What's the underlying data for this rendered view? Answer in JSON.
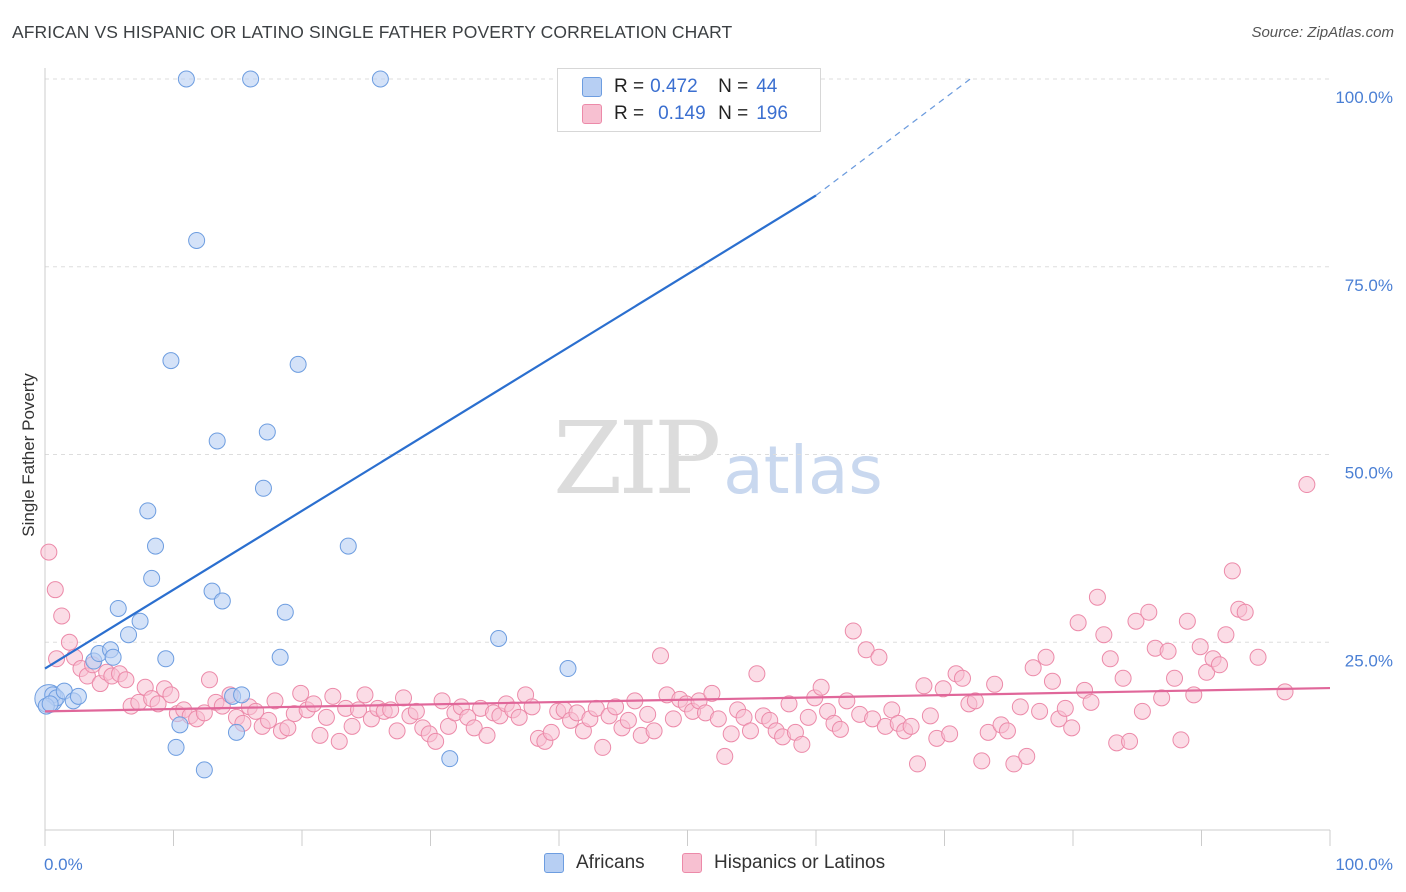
{
  "header": {
    "title": "AFRICAN VS HISPANIC OR LATINO SINGLE FATHER POVERTY CORRELATION CHART",
    "source": "Source: ZipAtlas.com"
  },
  "watermark": {
    "zip": "ZIP",
    "atlas": "atlas"
  },
  "legend": {
    "rows": [
      {
        "r_label": "R =",
        "r_value": "0.472",
        "n_label": "N =",
        "n_value": "44",
        "color": "#b7cff3"
      },
      {
        "r_label": "R =",
        "r_value": "0.149",
        "n_label": "N =",
        "n_value": "196",
        "color": "#f7c0d1"
      }
    ]
  },
  "bottom_legend": [
    {
      "label": "Africans",
      "color": "#b7cff3"
    },
    {
      "label": "Hispanics or Latinos",
      "color": "#f7c0d1"
    }
  ],
  "colors": {
    "africans_fill": "#b7cff3",
    "africans_stroke": "#6d9de0",
    "africans_line": "#2b6fcf",
    "hispanics_fill": "#f7c0d1",
    "hispanics_stroke": "#ec8aa9",
    "hispanics_line": "#e0679a",
    "grid": "#dddddd",
    "tick_text": "#4a7fd4"
  },
  "chart_data": {
    "type": "scatter",
    "title": "AFRICAN VS HISPANIC OR LATINO SINGLE FATHER POVERTY CORRELATION CHART",
    "xlabel": "",
    "ylabel": "Single Father Poverty",
    "xlim": [
      0,
      100
    ],
    "ylim": [
      0,
      100
    ],
    "x_tick_labels": [
      "0.0%",
      "100.0%"
    ],
    "y_tick_values": [
      25,
      50,
      75,
      100
    ],
    "y_tick_labels": [
      "25.0%",
      "50.0%",
      "75.0%",
      "100.0%"
    ],
    "grid": true,
    "legend_position": "top-center",
    "series": [
      {
        "name": "Africans",
        "R": 0.472,
        "N": 44,
        "trend": {
          "x0": 0,
          "y0": 21.5,
          "x1": 60,
          "y1": 84.5,
          "dash_x1": 72,
          "dash_y1": 100
        },
        "points": [
          [
            0.3,
            17.5
          ],
          [
            0.6,
            18.0
          ],
          [
            0.9,
            17.6
          ],
          [
            1.5,
            18.5
          ],
          [
            2.2,
            17.2
          ],
          [
            2.6,
            17.8
          ],
          [
            3.8,
            22.5
          ],
          [
            4.2,
            23.5
          ],
          [
            5.1,
            24.0
          ],
          [
            5.3,
            23.0
          ],
          [
            5.7,
            29.5
          ],
          [
            6.5,
            26.0
          ],
          [
            7.4,
            27.8
          ],
          [
            8.0,
            42.5
          ],
          [
            8.3,
            33.5
          ],
          [
            8.6,
            37.8
          ],
          [
            9.4,
            22.8
          ],
          [
            9.8,
            62.5
          ],
          [
            10.2,
            11.0
          ],
          [
            10.5,
            14.0
          ],
          [
            11.0,
            100.0
          ],
          [
            11.8,
            78.5
          ],
          [
            12.4,
            8.0
          ],
          [
            13.0,
            31.8
          ],
          [
            13.4,
            51.8
          ],
          [
            13.8,
            30.5
          ],
          [
            14.6,
            17.8
          ],
          [
            14.9,
            13.0
          ],
          [
            15.3,
            18.0
          ],
          [
            16.0,
            100.0
          ],
          [
            17.0,
            45.5
          ],
          [
            17.3,
            53.0
          ],
          [
            18.3,
            23.0
          ],
          [
            18.7,
            29.0
          ],
          [
            19.7,
            62.0
          ],
          [
            23.6,
            37.8
          ],
          [
            26.1,
            100.0
          ],
          [
            31.5,
            9.5
          ],
          [
            35.3,
            25.5
          ],
          [
            40.7,
            21.5
          ],
          [
            41.5,
            100.0
          ],
          [
            55.8,
            100.0
          ],
          [
            0.1,
            16.5
          ],
          [
            0.4,
            16.8
          ]
        ]
      },
      {
        "name": "Hispanics or Latinos",
        "R": 0.149,
        "N": 196,
        "trend": {
          "x0": 0,
          "y0": 15.8,
          "x1": 100,
          "y1": 18.9
        },
        "points": [
          [
            0.3,
            37.0
          ],
          [
            0.8,
            32.0
          ],
          [
            1.3,
            28.5
          ],
          [
            1.9,
            25.0
          ],
          [
            2.3,
            23.0
          ],
          [
            2.8,
            21.5
          ],
          [
            3.3,
            20.5
          ],
          [
            3.7,
            22.0
          ],
          [
            4.3,
            19.5
          ],
          [
            4.8,
            21.0
          ],
          [
            5.2,
            20.5
          ],
          [
            5.8,
            20.8
          ],
          [
            6.3,
            20.0
          ],
          [
            6.7,
            16.5
          ],
          [
            7.3,
            17.0
          ],
          [
            7.8,
            19.0
          ],
          [
            8.3,
            17.5
          ],
          [
            8.8,
            16.8
          ],
          [
            9.3,
            18.8
          ],
          [
            9.8,
            18.0
          ],
          [
            10.3,
            15.5
          ],
          [
            10.8,
            16.0
          ],
          [
            11.3,
            15.2
          ],
          [
            11.8,
            14.8
          ],
          [
            12.4,
            15.6
          ],
          [
            12.8,
            20.0
          ],
          [
            13.3,
            17.0
          ],
          [
            13.8,
            16.5
          ],
          [
            14.4,
            18.0
          ],
          [
            14.9,
            15.0
          ],
          [
            15.4,
            14.2
          ],
          [
            15.9,
            16.4
          ],
          [
            16.4,
            15.8
          ],
          [
            16.9,
            13.8
          ],
          [
            17.4,
            14.6
          ],
          [
            17.9,
            17.2
          ],
          [
            18.4,
            13.2
          ],
          [
            18.9,
            13.6
          ],
          [
            19.4,
            15.5
          ],
          [
            19.9,
            18.2
          ],
          [
            20.4,
            16.0
          ],
          [
            20.9,
            16.8
          ],
          [
            21.4,
            12.6
          ],
          [
            21.9,
            15.0
          ],
          [
            22.4,
            17.8
          ],
          [
            22.9,
            11.8
          ],
          [
            23.4,
            16.2
          ],
          [
            23.9,
            13.8
          ],
          [
            24.4,
            16.0
          ],
          [
            24.9,
            18.0
          ],
          [
            25.4,
            14.8
          ],
          [
            25.9,
            16.2
          ],
          [
            26.4,
            15.8
          ],
          [
            26.9,
            16.0
          ],
          [
            27.4,
            13.2
          ],
          [
            27.9,
            17.6
          ],
          [
            28.4,
            15.2
          ],
          [
            28.9,
            15.8
          ],
          [
            29.4,
            13.6
          ],
          [
            29.9,
            12.8
          ],
          [
            30.4,
            11.8
          ],
          [
            30.9,
            17.2
          ],
          [
            31.4,
            13.8
          ],
          [
            31.9,
            15.6
          ],
          [
            32.4,
            16.4
          ],
          [
            32.9,
            15.0
          ],
          [
            33.4,
            13.6
          ],
          [
            33.9,
            16.2
          ],
          [
            34.4,
            12.6
          ],
          [
            34.9,
            15.6
          ],
          [
            35.4,
            15.2
          ],
          [
            35.9,
            16.8
          ],
          [
            36.4,
            16.0
          ],
          [
            36.9,
            15.0
          ],
          [
            37.4,
            18.0
          ],
          [
            37.9,
            16.4
          ],
          [
            38.4,
            12.2
          ],
          [
            38.9,
            11.8
          ],
          [
            39.4,
            13.0
          ],
          [
            39.9,
            15.8
          ],
          [
            40.4,
            16.0
          ],
          [
            40.9,
            14.6
          ],
          [
            41.4,
            15.6
          ],
          [
            41.9,
            13.2
          ],
          [
            42.4,
            14.8
          ],
          [
            42.9,
            16.2
          ],
          [
            43.4,
            11.0
          ],
          [
            43.9,
            15.2
          ],
          [
            44.4,
            16.4
          ],
          [
            44.9,
            13.6
          ],
          [
            45.4,
            14.6
          ],
          [
            45.9,
            17.2
          ],
          [
            46.4,
            12.6
          ],
          [
            46.9,
            15.4
          ],
          [
            47.4,
            13.2
          ],
          [
            47.9,
            23.2
          ],
          [
            48.4,
            18.0
          ],
          [
            48.9,
            14.8
          ],
          [
            49.4,
            17.4
          ],
          [
            49.9,
            16.8
          ],
          [
            50.4,
            15.8
          ],
          [
            50.9,
            17.2
          ],
          [
            51.4,
            15.6
          ],
          [
            51.9,
            18.2
          ],
          [
            52.4,
            14.8
          ],
          [
            52.9,
            9.8
          ],
          [
            53.4,
            12.8
          ],
          [
            53.9,
            16.0
          ],
          [
            54.4,
            15.0
          ],
          [
            54.9,
            13.2
          ],
          [
            55.4,
            20.8
          ],
          [
            55.9,
            15.2
          ],
          [
            56.4,
            14.6
          ],
          [
            56.9,
            13.2
          ],
          [
            57.4,
            12.4
          ],
          [
            57.9,
            16.8
          ],
          [
            58.4,
            13.0
          ],
          [
            58.9,
            11.4
          ],
          [
            59.4,
            15.0
          ],
          [
            59.9,
            17.6
          ],
          [
            60.4,
            19.0
          ],
          [
            60.9,
            15.8
          ],
          [
            61.4,
            14.2
          ],
          [
            61.9,
            13.4
          ],
          [
            62.4,
            17.2
          ],
          [
            62.9,
            26.5
          ],
          [
            63.4,
            15.4
          ],
          [
            63.9,
            24.0
          ],
          [
            64.4,
            14.8
          ],
          [
            64.9,
            23.0
          ],
          [
            65.4,
            13.8
          ],
          [
            65.9,
            16.0
          ],
          [
            66.4,
            14.2
          ],
          [
            66.9,
            13.2
          ],
          [
            67.4,
            13.8
          ],
          [
            67.9,
            8.8
          ],
          [
            68.4,
            19.2
          ],
          [
            68.9,
            15.2
          ],
          [
            69.4,
            12.2
          ],
          [
            69.9,
            18.8
          ],
          [
            70.4,
            12.8
          ],
          [
            70.9,
            20.8
          ],
          [
            71.4,
            20.2
          ],
          [
            71.9,
            16.8
          ],
          [
            72.4,
            17.2
          ],
          [
            72.9,
            9.2
          ],
          [
            73.4,
            13.0
          ],
          [
            73.9,
            19.4
          ],
          [
            74.4,
            14.0
          ],
          [
            74.9,
            13.2
          ],
          [
            75.4,
            8.8
          ],
          [
            75.9,
            16.4
          ],
          [
            76.4,
            9.8
          ],
          [
            76.9,
            21.6
          ],
          [
            77.4,
            15.8
          ],
          [
            77.9,
            23.0
          ],
          [
            78.4,
            19.8
          ],
          [
            78.9,
            14.8
          ],
          [
            79.4,
            16.2
          ],
          [
            79.9,
            13.6
          ],
          [
            80.4,
            27.6
          ],
          [
            80.9,
            18.6
          ],
          [
            81.4,
            17.0
          ],
          [
            81.9,
            31.0
          ],
          [
            82.4,
            26.0
          ],
          [
            82.9,
            22.8
          ],
          [
            83.4,
            11.6
          ],
          [
            83.9,
            20.2
          ],
          [
            84.4,
            11.8
          ],
          [
            84.9,
            27.8
          ],
          [
            85.4,
            15.8
          ],
          [
            85.9,
            29.0
          ],
          [
            86.4,
            24.2
          ],
          [
            86.9,
            17.6
          ],
          [
            87.4,
            23.8
          ],
          [
            87.9,
            20.2
          ],
          [
            88.4,
            12.0
          ],
          [
            88.9,
            27.8
          ],
          [
            89.4,
            18.0
          ],
          [
            89.9,
            24.4
          ],
          [
            90.4,
            21.0
          ],
          [
            90.9,
            22.8
          ],
          [
            91.4,
            22.0
          ],
          [
            91.9,
            26.0
          ],
          [
            92.4,
            34.5
          ],
          [
            92.9,
            29.4
          ],
          [
            93.4,
            29.0
          ],
          [
            94.4,
            23.0
          ],
          [
            96.5,
            18.4
          ],
          [
            98.2,
            46.0
          ],
          [
            0.9,
            22.8
          ]
        ]
      }
    ]
  }
}
